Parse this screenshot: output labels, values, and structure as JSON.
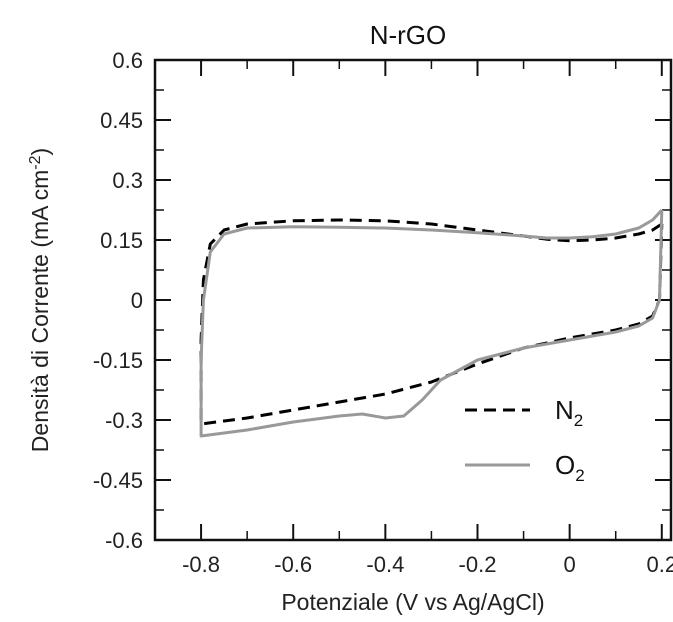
{
  "chart_data": {
    "type": "line",
    "title": "N-rGO",
    "xlabel": "Potenziale (V vs Ag/AgCl)",
    "ylabel": "Densità di Corrente (mA cm",
    "ylabel_sup": "-2",
    "ylabel_close": ")",
    "xlim": [
      -0.9,
      0.22
    ],
    "ylim": [
      -0.6,
      0.6
    ],
    "x_ticks": [
      -0.8,
      -0.6,
      -0.4,
      -0.2,
      0,
      0.2
    ],
    "x_tick_labels": [
      "-0.8",
      "-0.6",
      "-0.4",
      "-0.2",
      "0",
      "0.2"
    ],
    "y_ticks": [
      0.6,
      0.45,
      0.3,
      0.15,
      0,
      -0.15,
      -0.3,
      -0.45,
      -0.6
    ],
    "y_tick_labels": [
      "0.6",
      "0.45",
      "0.3",
      "0.15",
      "0",
      "-0.15",
      "-0.3",
      "-0.45",
      "-0.6"
    ],
    "grid": false,
    "legend_position": "bottom-right",
    "series": [
      {
        "name": "N",
        "name_sub": "2",
        "color": "#000000",
        "style": "dashed",
        "points": [
          [
            0.2,
            0.19
          ],
          [
            0.18,
            0.175
          ],
          [
            0.15,
            0.165
          ],
          [
            0.1,
            0.155
          ],
          [
            0.05,
            0.15
          ],
          [
            0.0,
            0.148
          ],
          [
            -0.05,
            0.152
          ],
          [
            -0.1,
            0.16
          ],
          [
            -0.2,
            0.175
          ],
          [
            -0.3,
            0.19
          ],
          [
            -0.4,
            0.198
          ],
          [
            -0.5,
            0.2
          ],
          [
            -0.6,
            0.198
          ],
          [
            -0.7,
            0.19
          ],
          [
            -0.75,
            0.175
          ],
          [
            -0.78,
            0.14
          ],
          [
            -0.795,
            0.05
          ],
          [
            -0.8,
            -0.1
          ],
          [
            -0.8,
            -0.31
          ],
          [
            -0.7,
            -0.295
          ],
          [
            -0.6,
            -0.275
          ],
          [
            -0.5,
            -0.255
          ],
          [
            -0.4,
            -0.235
          ],
          [
            -0.3,
            -0.205
          ],
          [
            -0.2,
            -0.16
          ],
          [
            -0.1,
            -0.12
          ],
          [
            0.0,
            -0.095
          ],
          [
            0.1,
            -0.075
          ],
          [
            0.15,
            -0.06
          ],
          [
            0.18,
            -0.04
          ],
          [
            0.195,
            0.0
          ],
          [
            0.2,
            0.19
          ]
        ]
      },
      {
        "name": "O",
        "name_sub": "2",
        "color": "#999999",
        "style": "solid",
        "points": [
          [
            0.2,
            0.225
          ],
          [
            0.18,
            0.2
          ],
          [
            0.15,
            0.18
          ],
          [
            0.1,
            0.165
          ],
          [
            0.05,
            0.158
          ],
          [
            0.0,
            0.155
          ],
          [
            -0.05,
            0.155
          ],
          [
            -0.1,
            0.16
          ],
          [
            -0.2,
            0.168
          ],
          [
            -0.3,
            0.175
          ],
          [
            -0.4,
            0.18
          ],
          [
            -0.5,
            0.182
          ],
          [
            -0.6,
            0.183
          ],
          [
            -0.7,
            0.18
          ],
          [
            -0.75,
            0.165
          ],
          [
            -0.78,
            0.12
          ],
          [
            -0.795,
            0.0
          ],
          [
            -0.8,
            -0.15
          ],
          [
            -0.8,
            -0.34
          ],
          [
            -0.7,
            -0.325
          ],
          [
            -0.6,
            -0.305
          ],
          [
            -0.5,
            -0.29
          ],
          [
            -0.45,
            -0.285
          ],
          [
            -0.4,
            -0.295
          ],
          [
            -0.36,
            -0.29
          ],
          [
            -0.32,
            -0.25
          ],
          [
            -0.28,
            -0.2
          ],
          [
            -0.2,
            -0.15
          ],
          [
            -0.1,
            -0.12
          ],
          [
            0.0,
            -0.1
          ],
          [
            0.1,
            -0.08
          ],
          [
            0.15,
            -0.065
          ],
          [
            0.18,
            -0.045
          ],
          [
            0.195,
            0.0
          ],
          [
            0.2,
            0.225
          ]
        ]
      }
    ]
  }
}
